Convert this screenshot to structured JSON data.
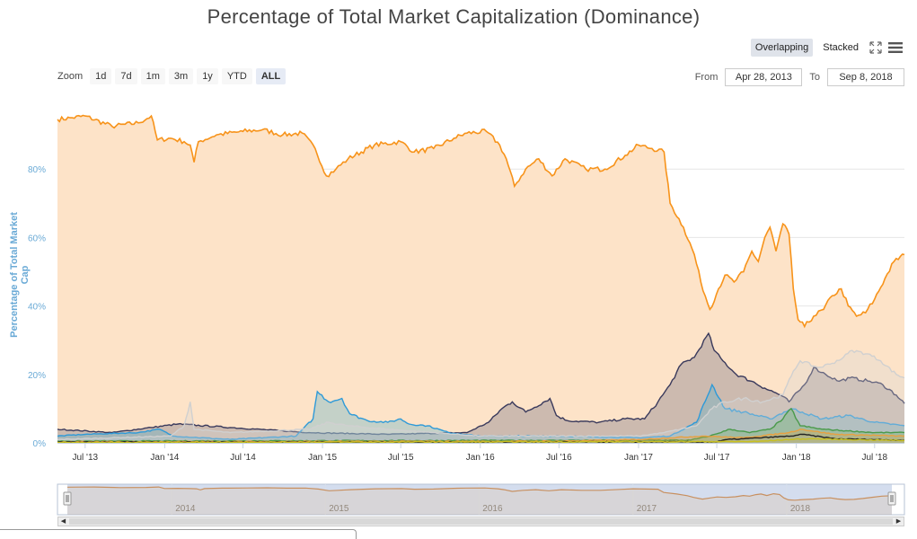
{
  "page": {
    "title": "Percentage of Total Market Capitalization (Dominance)"
  },
  "modes": {
    "overlapping": "Overlapping",
    "stacked": "Stacked",
    "active": "overlapping",
    "fullscreen_icon": "fullscreen-icon",
    "menu_icon": "menu-icon"
  },
  "zoom": {
    "label": "Zoom",
    "buttons": [
      "1d",
      "7d",
      "1m",
      "3m",
      "1y",
      "YTD",
      "ALL"
    ],
    "active": "ALL"
  },
  "range": {
    "from_label": "From",
    "from_value": "Apr 28, 2013",
    "to_label": "To",
    "to_value": "Sep 8, 2018"
  },
  "navigator": {
    "year_labels": [
      "2014",
      "2015",
      "2016",
      "2017",
      "2018"
    ],
    "year_positions": [
      "2014-01-01",
      "2015-01-01",
      "2016-01-01",
      "2017-01-01",
      "2018-01-01"
    ],
    "handle_icon": "grip-icon"
  },
  "chart_data": {
    "type": "area",
    "ylabel": "Percentage of Total Market Cap",
    "ylim": [
      0,
      100
    ],
    "yticks": [
      0,
      20,
      40,
      60,
      80
    ],
    "ytick_labels": [
      "0%",
      "20%",
      "40%",
      "60%",
      "80%"
    ],
    "xlim": [
      "2013-04-28",
      "2018-09-08"
    ],
    "xticks": [
      "2013-07-01",
      "2014-01-01",
      "2014-07-01",
      "2015-01-01",
      "2015-07-01",
      "2016-01-01",
      "2016-07-01",
      "2017-01-01",
      "2017-07-01",
      "2018-01-01",
      "2018-07-01"
    ],
    "xtick_labels": [
      "Jul '13",
      "Jan '14",
      "Jul '14",
      "Jan '15",
      "Jul '15",
      "Jan '16",
      "Jul '16",
      "Jan '17",
      "Jul '17",
      "Jan '18",
      "Jul '18"
    ],
    "grid": true,
    "series": [
      {
        "color": "#f7931a",
        "fill": "#fde3c8",
        "points": [
          [
            "2013-04-28",
            94.5
          ],
          [
            "2013-06-01",
            95
          ],
          [
            "2013-07-01",
            95.5
          ],
          [
            "2013-09-01",
            92.5
          ],
          [
            "2013-11-01",
            93.5
          ],
          [
            "2013-12-01",
            95.5
          ],
          [
            "2013-12-15",
            88.5
          ],
          [
            "2014-01-15",
            89
          ],
          [
            "2014-02-15",
            88
          ],
          [
            "2014-03-01",
            87
          ],
          [
            "2014-03-10",
            82
          ],
          [
            "2014-03-20",
            88
          ],
          [
            "2014-05-01",
            90
          ],
          [
            "2014-07-01",
            91
          ],
          [
            "2014-08-15",
            91.5
          ],
          [
            "2014-10-01",
            90
          ],
          [
            "2014-11-15",
            90.5
          ],
          [
            "2014-12-15",
            86
          ],
          [
            "2015-01-10",
            78
          ],
          [
            "2015-02-01",
            80
          ],
          [
            "2015-03-01",
            83
          ],
          [
            "2015-05-01",
            87
          ],
          [
            "2015-07-01",
            88
          ],
          [
            "2015-08-01",
            85
          ],
          [
            "2015-09-15",
            86
          ],
          [
            "2015-11-01",
            89
          ],
          [
            "2015-12-01",
            90.5
          ],
          [
            "2016-01-15",
            91
          ],
          [
            "2016-02-15",
            87
          ],
          [
            "2016-03-01",
            83
          ],
          [
            "2016-03-20",
            75
          ],
          [
            "2016-04-15",
            80
          ],
          [
            "2016-05-15",
            83
          ],
          [
            "2016-06-15",
            78
          ],
          [
            "2016-07-15",
            83
          ],
          [
            "2016-09-01",
            80
          ],
          [
            "2016-10-15",
            80
          ],
          [
            "2016-12-01",
            84
          ],
          [
            "2017-01-01",
            87
          ],
          [
            "2017-02-01",
            86
          ],
          [
            "2017-03-01",
            85
          ],
          [
            "2017-03-15",
            70
          ],
          [
            "2017-04-15",
            63
          ],
          [
            "2017-05-10",
            55
          ],
          [
            "2017-05-25",
            47
          ],
          [
            "2017-06-15",
            39
          ],
          [
            "2017-07-05",
            45
          ],
          [
            "2017-07-20",
            49
          ],
          [
            "2017-08-10",
            47
          ],
          [
            "2017-09-01",
            50
          ],
          [
            "2017-09-20",
            56
          ],
          [
            "2017-10-05",
            53
          ],
          [
            "2017-10-20",
            60
          ],
          [
            "2017-11-01",
            63
          ],
          [
            "2017-11-15",
            56
          ],
          [
            "2017-12-01",
            64
          ],
          [
            "2017-12-15",
            61
          ],
          [
            "2017-12-25",
            45
          ],
          [
            "2018-01-05",
            36
          ],
          [
            "2018-01-20",
            34
          ],
          [
            "2018-02-10",
            37
          ],
          [
            "2018-03-05",
            39
          ],
          [
            "2018-03-25",
            43
          ],
          [
            "2018-04-15",
            45
          ],
          [
            "2018-05-01",
            40
          ],
          [
            "2018-05-20",
            37
          ],
          [
            "2018-06-10",
            38
          ],
          [
            "2018-07-01",
            42
          ],
          [
            "2018-07-25",
            48
          ],
          [
            "2018-08-15",
            53
          ],
          [
            "2018-09-08",
            55
          ]
        ]
      },
      {
        "color": "#3a3a5c",
        "fill": "rgba(80,80,110,0.28)",
        "points": [
          [
            "2013-04-28",
            4
          ],
          [
            "2013-09-01",
            3
          ],
          [
            "2013-12-01",
            4.5
          ],
          [
            "2014-02-01",
            5.5
          ],
          [
            "2014-06-01",
            4.5
          ],
          [
            "2014-12-01",
            3
          ],
          [
            "2015-06-01",
            2.5
          ],
          [
            "2015-12-01",
            3
          ],
          [
            "2016-01-20",
            6
          ],
          [
            "2016-02-20",
            10
          ],
          [
            "2016-03-15",
            12
          ],
          [
            "2016-04-15",
            9
          ],
          [
            "2016-06-10",
            13
          ],
          [
            "2016-06-25",
            8
          ],
          [
            "2016-07-20",
            6.5
          ],
          [
            "2016-10-01",
            6
          ],
          [
            "2016-12-01",
            7
          ],
          [
            "2017-01-15",
            7
          ],
          [
            "2017-02-15",
            12
          ],
          [
            "2017-03-15",
            17
          ],
          [
            "2017-04-10",
            23
          ],
          [
            "2017-05-10",
            25
          ],
          [
            "2017-06-12",
            32
          ],
          [
            "2017-06-25",
            27
          ],
          [
            "2017-07-15",
            24
          ],
          [
            "2017-08-15",
            20
          ],
          [
            "2017-09-20",
            18
          ],
          [
            "2017-10-20",
            16
          ],
          [
            "2017-11-25",
            14
          ],
          [
            "2017-12-15",
            12
          ],
          [
            "2018-01-20",
            17
          ],
          [
            "2018-02-10",
            22
          ],
          [
            "2018-03-10",
            20
          ],
          [
            "2018-04-10",
            18
          ],
          [
            "2018-05-05",
            19
          ],
          [
            "2018-06-20",
            18
          ],
          [
            "2018-07-20",
            17
          ],
          [
            "2018-08-20",
            14
          ],
          [
            "2018-09-08",
            11.5
          ]
        ]
      },
      {
        "color": "#2e9ad8",
        "fill": "rgba(90,175,200,0.35)",
        "points": [
          [
            "2013-04-28",
            2
          ],
          [
            "2013-07-01",
            2.5
          ],
          [
            "2013-11-01",
            3
          ],
          [
            "2013-12-20",
            4
          ],
          [
            "2014-01-20",
            2
          ],
          [
            "2014-06-01",
            1
          ],
          [
            "2014-11-01",
            2
          ],
          [
            "2014-12-10",
            7
          ],
          [
            "2014-12-20",
            15
          ],
          [
            "2015-01-15",
            12
          ],
          [
            "2015-02-15",
            13
          ],
          [
            "2015-03-05",
            8.5
          ],
          [
            "2015-04-15",
            6.5
          ],
          [
            "2015-06-01",
            6
          ],
          [
            "2015-07-01",
            7
          ],
          [
            "2015-07-20",
            5.5
          ],
          [
            "2015-09-01",
            5
          ],
          [
            "2015-10-20",
            3
          ],
          [
            "2016-01-01",
            2
          ],
          [
            "2016-07-01",
            2
          ],
          [
            "2017-01-01",
            1.5
          ],
          [
            "2017-03-15",
            2
          ],
          [
            "2017-05-15",
            6
          ],
          [
            "2017-06-20",
            17
          ],
          [
            "2017-07-20",
            10
          ],
          [
            "2017-09-01",
            9
          ],
          [
            "2017-11-01",
            7
          ],
          [
            "2017-12-20",
            10
          ],
          [
            "2018-01-15",
            9
          ],
          [
            "2018-03-01",
            7
          ],
          [
            "2018-05-01",
            8
          ],
          [
            "2018-07-01",
            6
          ],
          [
            "2018-09-08",
            5
          ]
        ]
      },
      {
        "color": "#d0d0d0",
        "fill": "rgba(215,215,215,0.3)",
        "points": [
          [
            "2013-04-28",
            1
          ],
          [
            "2014-01-15",
            2
          ],
          [
            "2014-02-15",
            5
          ],
          [
            "2014-03-01",
            12
          ],
          [
            "2014-03-10",
            4
          ],
          [
            "2014-06-01",
            3
          ],
          [
            "2014-12-01",
            4
          ],
          [
            "2015-01-15",
            6
          ],
          [
            "2015-03-01",
            5
          ],
          [
            "2015-06-01",
            4
          ],
          [
            "2016-01-01",
            2
          ],
          [
            "2016-07-01",
            2
          ],
          [
            "2017-01-01",
            2
          ],
          [
            "2017-03-01",
            3
          ],
          [
            "2017-05-15",
            5
          ],
          [
            "2017-06-20",
            10
          ],
          [
            "2017-07-20",
            12
          ],
          [
            "2017-09-01",
            13
          ],
          [
            "2017-10-15",
            12
          ],
          [
            "2017-12-01",
            14
          ],
          [
            "2017-12-25",
            21
          ],
          [
            "2018-01-10",
            24
          ],
          [
            "2018-02-20",
            22
          ],
          [
            "2018-03-20",
            23
          ],
          [
            "2018-04-20",
            25
          ],
          [
            "2018-05-10",
            27
          ],
          [
            "2018-06-15",
            26
          ],
          [
            "2018-07-15",
            24
          ],
          [
            "2018-08-20",
            20
          ],
          [
            "2018-09-08",
            19
          ]
        ]
      },
      {
        "color": "#4a9a4a",
        "fill": "rgba(120,180,110,0.35)",
        "points": [
          [
            "2013-04-28",
            0.5
          ],
          [
            "2017-05-01",
            0.8
          ],
          [
            "2017-06-15",
            2
          ],
          [
            "2017-08-01",
            4
          ],
          [
            "2017-09-15",
            3
          ],
          [
            "2017-11-01",
            4
          ],
          [
            "2017-12-01",
            7
          ],
          [
            "2017-12-20",
            10
          ],
          [
            "2018-01-10",
            5
          ],
          [
            "2018-03-01",
            4
          ],
          [
            "2018-05-01",
            3.5
          ],
          [
            "2018-07-01",
            3
          ],
          [
            "2018-09-08",
            3
          ]
        ]
      },
      {
        "color": "#e8a040",
        "fill": "rgba(240,160,60,0.25)",
        "points": [
          [
            "2013-04-28",
            0.3
          ],
          [
            "2016-07-01",
            0.5
          ],
          [
            "2017-01-01",
            1
          ],
          [
            "2017-06-01",
            2
          ],
          [
            "2017-09-01",
            1.5
          ],
          [
            "2017-12-15",
            3
          ],
          [
            "2018-01-10",
            4
          ],
          [
            "2018-04-01",
            2.5
          ],
          [
            "2018-09-08",
            2
          ]
        ]
      },
      {
        "color": "#222222",
        "fill": "rgba(0,0,0,0)",
        "points": [
          [
            "2013-04-28",
            0.2
          ],
          [
            "2017-07-01",
            0.3
          ],
          [
            "2017-07-25",
            1
          ],
          [
            "2017-09-01",
            1.2
          ],
          [
            "2017-12-20",
            2
          ],
          [
            "2018-01-15",
            2.5
          ],
          [
            "2018-04-01",
            1.2
          ],
          [
            "2018-09-08",
            0.8
          ]
        ]
      },
      {
        "color": "#c8c020",
        "fill": "rgba(0,0,0,0)",
        "points": [
          [
            "2013-04-28",
            0.1
          ],
          [
            "2017-10-01",
            0.4
          ],
          [
            "2017-12-20",
            1
          ],
          [
            "2018-02-01",
            1.2
          ],
          [
            "2018-06-01",
            0.9
          ],
          [
            "2018-09-08",
            0.7
          ]
        ]
      }
    ]
  }
}
